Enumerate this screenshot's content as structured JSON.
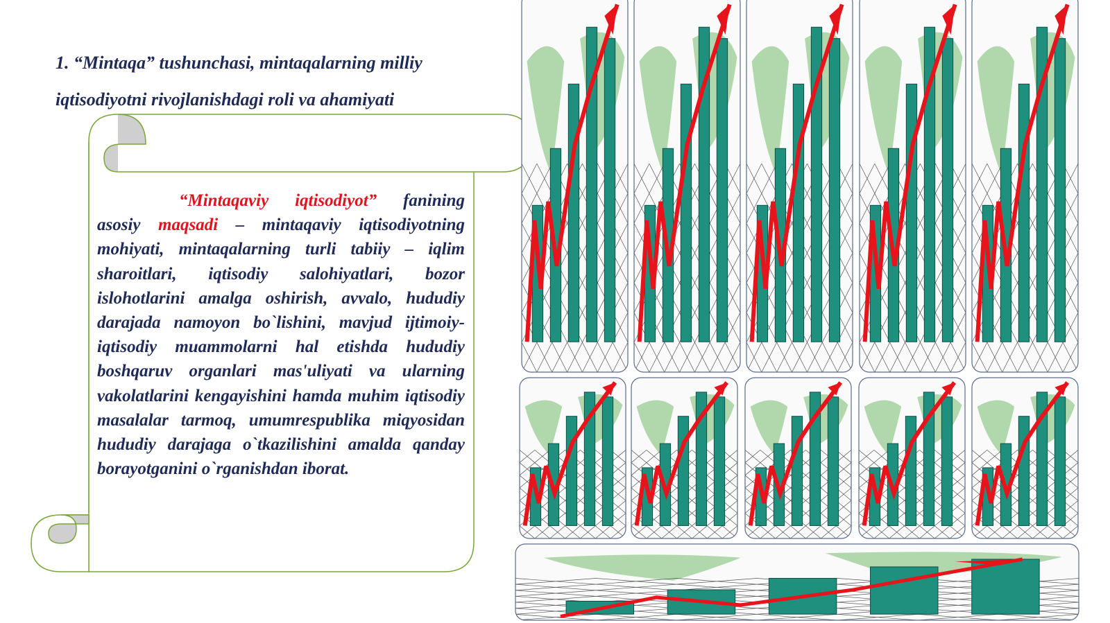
{
  "heading": {
    "lines": [
      "1. “Mintaqa” tushunchasi, mintaqalarning milliy",
      "iqtisodiyotni rivojlanishdagi roli va ahamiyati"
    ]
  },
  "scroll": {
    "segments": [
      {
        "text": "“Mintaqaviy iqtisodiyot”",
        "color": "#e0141e"
      },
      {
        "text": " fanining asosiy ",
        "color": "#1f2a56"
      },
      {
        "text": "maqsadi",
        "color": "#e0141e"
      },
      {
        "text": " – mintaqaviy iqtisodiyotning mohiyati, mintaqalarning turli tabiiy – iqlim sharoitlari, iqtisodiy salohiyatlari, bozor islohotlarini amalga oshirish, avvalo, hududiy darajada namoyon bo`lishini, mavjud ijtimoiy-iqtisodiy muammolarni hal etishda hududiy boshqaruv organlari mas'uliyati va ularning vakolatlarini kengayishini hamda muhim iqtisodiy masalalar tarmoq, umumrespublika miqyosidan hududiy darajaga o`tkazilishini amalda qanday borayotganini o`rganishdan iborat.",
        "color": "#1f2a56"
      }
    ]
  }
}
